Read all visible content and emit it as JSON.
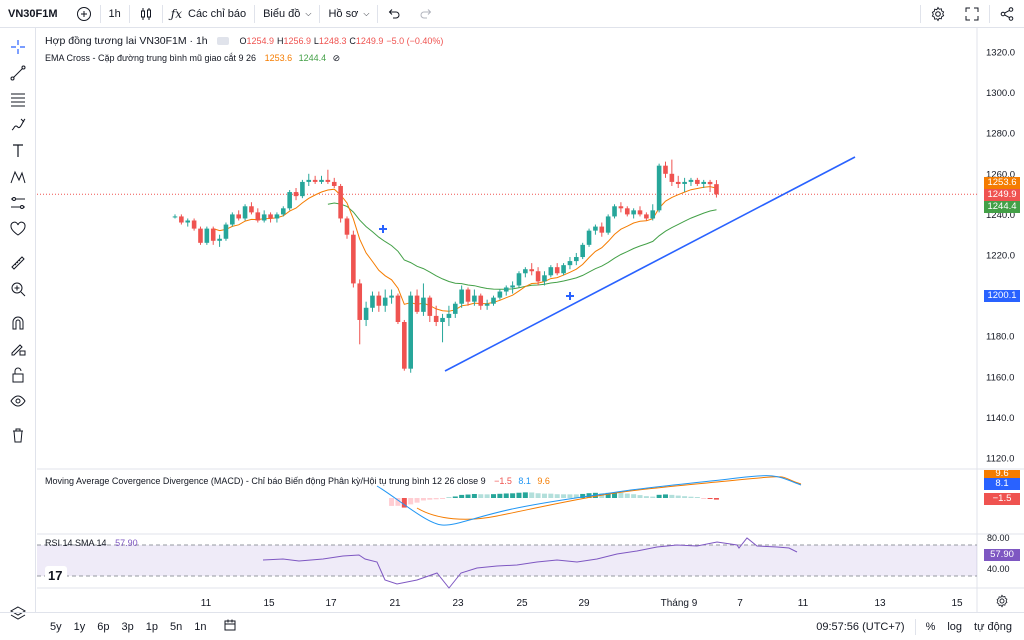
{
  "toolbar": {
    "symbol": "VN30F1M",
    "interval": "1h",
    "indicators_label": "Các chỉ báo",
    "chart_type_label": "Biểu đồ",
    "profile_label": "Hồ sơ"
  },
  "legend": {
    "title": "Hợp đồng tương lai VN30F1M · 1h",
    "o_label": "O",
    "o": "1254.9",
    "h_label": "H",
    "h": "1256.9",
    "l_label": "L",
    "l": "1248.3",
    "c_label": "C",
    "c": "1249.9",
    "change": "−5.0 (−0.40%)",
    "ema_label": "EMA Cross - Cặp đường trung bình mũ giao cắt 9 26",
    "ema_fast": "1253.6",
    "ema_slow": "1244.4",
    "macd_label": "Moving Average Covergence Divergence (MACD) - Chỉ báo Biến động Phân kỳ/Hội tụ trung bình 12 26 close 9",
    "macd_hist": "−1.5",
    "macd_line": "8.1",
    "macd_signal": "9.6",
    "rsi_label": "RSI 14 SMA 14",
    "rsi_value": "57.90"
  },
  "price_axis": {
    "ticks": [
      "1320.0",
      "1300.0",
      "1280.0",
      "1260.0",
      "1240.0",
      "1220.0",
      "1200.0",
      "1180.0",
      "1160.0",
      "1140.0",
      "1120.0"
    ],
    "tag_ema_fast": "1253.6",
    "tag_close": "1249.9",
    "tag_ema_slow": "1244.4",
    "tag_cursor": "1200.1",
    "macd_tag_signal": "9.6",
    "macd_tag_line": "8.1",
    "macd_tag_hist": "−1.5",
    "rsi_ticks": [
      "80.00",
      "40.00"
    ],
    "rsi_tag": "57.90"
  },
  "time_axis": [
    "11",
    "15",
    "17",
    "21",
    "23",
    "25",
    "29",
    "Tháng 9",
    "7",
    "11",
    "13",
    "15"
  ],
  "bottom": {
    "ranges": [
      "5y",
      "1y",
      "6p",
      "3p",
      "1p",
      "5n",
      "1n"
    ],
    "clock": "09:57:56 (UTC+7)",
    "percent": "%",
    "log": "log",
    "auto": "tự động"
  },
  "colors": {
    "up": "#26a69a",
    "down": "#ef5350",
    "ema_fast": "#f57c00",
    "ema_slow": "#43a047",
    "trendline": "#2962ff",
    "rsi": "#7e57c2"
  },
  "chart_data": {
    "type": "candlestick",
    "ylim": [
      1110,
      1330
    ],
    "ema_fast_last": 1253.6,
    "ema_slow_last": 1244.4,
    "candles": [
      [
        1239.0,
        1240.0,
        1238.0,
        1239.0
      ],
      [
        1239.0,
        1240.0,
        1235.0,
        1236.0
      ],
      [
        1236.0,
        1238.0,
        1234.0,
        1237.0
      ],
      [
        1237.0,
        1238.0,
        1232.0,
        1233.0
      ],
      [
        1233.0,
        1234.0,
        1225.0,
        1226.0
      ],
      [
        1226.0,
        1234.0,
        1225.0,
        1233.0
      ],
      [
        1233.0,
        1234.0,
        1225.0,
        1227.0
      ],
      [
        1227.0,
        1230.0,
        1224.0,
        1228.0
      ],
      [
        1228.0,
        1236.0,
        1227.0,
        1235.0
      ],
      [
        1235.0,
        1241.0,
        1234.0,
        1240.0
      ],
      [
        1240.0,
        1242.0,
        1237.0,
        1238.0
      ],
      [
        1238.0,
        1245.0,
        1237.0,
        1244.0
      ],
      [
        1244.0,
        1246.0,
        1240.0,
        1241.0
      ],
      [
        1241.0,
        1243.0,
        1236.0,
        1237.0
      ],
      [
        1237.0,
        1242.0,
        1236.0,
        1240.0
      ],
      [
        1240.0,
        1241.0,
        1236.0,
        1238.0
      ],
      [
        1238.0,
        1241.0,
        1236.0,
        1240.0
      ],
      [
        1240.0,
        1244.0,
        1239.0,
        1243.0
      ],
      [
        1243.0,
        1252.0,
        1242.0,
        1251.0
      ],
      [
        1251.0,
        1253.0,
        1247.0,
        1249.0
      ],
      [
        1249.0,
        1257.0,
        1248.0,
        1256.0
      ],
      [
        1256.0,
        1260.0,
        1254.0,
        1257.0
      ],
      [
        1257.0,
        1259.0,
        1255.0,
        1256.0
      ],
      [
        1256.0,
        1259.0,
        1255.0,
        1257.0
      ],
      [
        1257.0,
        1262.0,
        1255.0,
        1256.0
      ],
      [
        1256.0,
        1258.0,
        1253.0,
        1254.0
      ],
      [
        1254.0,
        1255.0,
        1236.0,
        1238.0
      ],
      [
        1238.0,
        1239.0,
        1228.0,
        1230.0
      ],
      [
        1230.0,
        1232.0,
        1204.0,
        1206.0
      ],
      [
        1206.0,
        1208.0,
        1176.0,
        1188.0
      ],
      [
        1188.0,
        1197.0,
        1185.0,
        1194.0
      ],
      [
        1194.0,
        1202.0,
        1192.0,
        1200.0
      ],
      [
        1200.0,
        1202.0,
        1192.0,
        1195.0
      ],
      [
        1195.0,
        1203.0,
        1192.0,
        1199.0
      ],
      [
        1199.0,
        1203.0,
        1196.0,
        1200.0
      ],
      [
        1200.0,
        1201.0,
        1186.0,
        1187.0
      ],
      [
        1187.0,
        1188.0,
        1163.0,
        1164.0
      ],
      [
        1164.0,
        1202.0,
        1162.0,
        1200.0
      ],
      [
        1200.0,
        1203.0,
        1191.0,
        1192.0
      ],
      [
        1192.0,
        1206.0,
        1190.0,
        1199.0
      ],
      [
        1199.0,
        1200.0,
        1187.0,
        1190.0
      ],
      [
        1190.0,
        1195.0,
        1185.0,
        1187.0
      ],
      [
        1187.0,
        1191.0,
        1177.0,
        1189.0
      ],
      [
        1189.0,
        1195.0,
        1185.0,
        1191.0
      ],
      [
        1191.0,
        1197.0,
        1189.0,
        1196.0
      ],
      [
        1196.0,
        1205.0,
        1194.0,
        1203.0
      ],
      [
        1203.0,
        1204.0,
        1195.0,
        1197.0
      ],
      [
        1197.0,
        1203.0,
        1195.0,
        1200.0
      ],
      [
        1200.0,
        1201.0,
        1193.0,
        1195.0
      ],
      [
        1195.0,
        1198.0,
        1193.0,
        1196.0
      ],
      [
        1196.0,
        1200.0,
        1195.0,
        1199.0
      ],
      [
        1199.0,
        1203.0,
        1198.0,
        1202.0
      ],
      [
        1202.0,
        1205.0,
        1200.0,
        1204.0
      ],
      [
        1204.0,
        1207.0,
        1201.0,
        1205.0
      ],
      [
        1205.0,
        1212.0,
        1204.0,
        1211.0
      ],
      [
        1211.0,
        1214.0,
        1209.0,
        1213.0
      ],
      [
        1213.0,
        1216.0,
        1210.0,
        1212.0
      ],
      [
        1212.0,
        1214.0,
        1205.0,
        1207.0
      ],
      [
        1207.0,
        1212.0,
        1205.0,
        1210.0
      ],
      [
        1210.0,
        1215.0,
        1209.0,
        1214.0
      ],
      [
        1214.0,
        1216.0,
        1210.0,
        1211.0
      ],
      [
        1211.0,
        1216.0,
        1210.0,
        1215.0
      ],
      [
        1215.0,
        1219.0,
        1213.0,
        1217.0
      ],
      [
        1217.0,
        1221.0,
        1215.0,
        1219.0
      ],
      [
        1219.0,
        1226.0,
        1218.0,
        1225.0
      ],
      [
        1225.0,
        1233.0,
        1224.0,
        1232.0
      ],
      [
        1232.0,
        1235.0,
        1230.0,
        1234.0
      ],
      [
        1234.0,
        1236.0,
        1229.0,
        1231.0
      ],
      [
        1231.0,
        1240.0,
        1230.0,
        1239.0
      ],
      [
        1239.0,
        1245.0,
        1238.0,
        1244.0
      ],
      [
        1244.0,
        1246.0,
        1241.0,
        1243.0
      ],
      [
        1243.0,
        1244.0,
        1239.0,
        1240.0
      ],
      [
        1240.0,
        1243.0,
        1238.0,
        1242.0
      ],
      [
        1242.0,
        1244.0,
        1239.0,
        1240.0
      ],
      [
        1240.0,
        1241.0,
        1237.0,
        1238.0
      ],
      [
        1238.0,
        1245.0,
        1237.0,
        1242.0
      ],
      [
        1242.0,
        1265.0,
        1241.0,
        1264.0
      ],
      [
        1264.0,
        1266.0,
        1258.0,
        1260.0
      ],
      [
        1260.0,
        1267.0,
        1254.0,
        1256.0
      ],
      [
        1256.0,
        1259.0,
        1253.0,
        1255.0
      ],
      [
        1255.0,
        1258.0,
        1251.0,
        1256.0
      ],
      [
        1256.0,
        1258.0,
        1254.0,
        1257.0
      ],
      [
        1257.0,
        1258.0,
        1254.0,
        1255.0
      ],
      [
        1255.0,
        1257.0,
        1253.0,
        1256.0
      ],
      [
        1256.0,
        1257.0,
        1251.0,
        1254.9
      ],
      [
        1254.9,
        1256.9,
        1248.3,
        1249.9
      ]
    ]
  }
}
